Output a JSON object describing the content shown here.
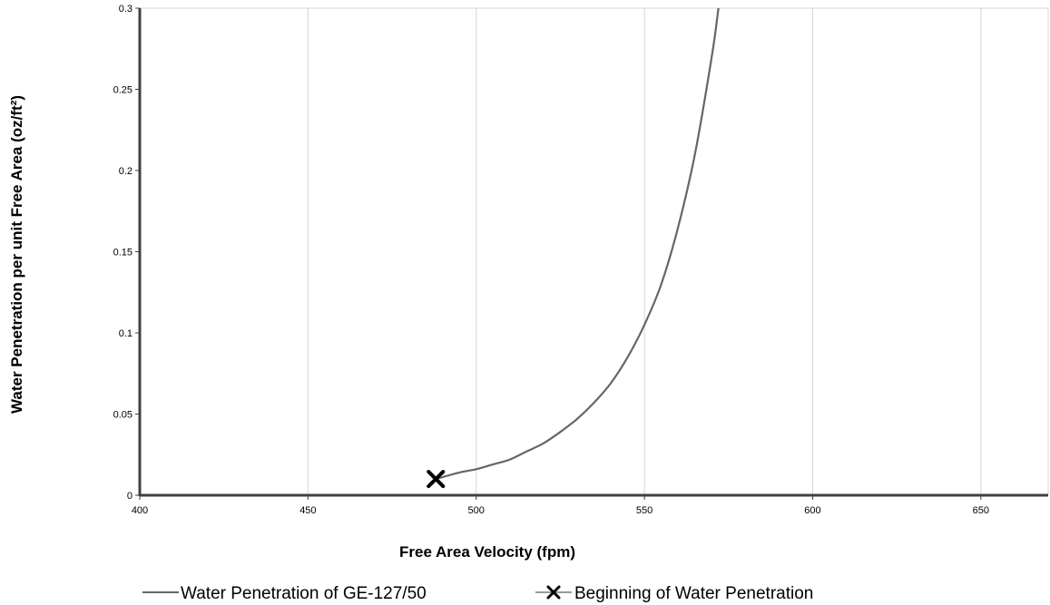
{
  "chart_data": {
    "type": "line",
    "xlabel": "Free Area Velocity (fpm)",
    "ylabel": "Water Penetration per unit Free Area (oz/ft²)",
    "xlim": [
      400,
      670
    ],
    "ylim": [
      0,
      0.3
    ],
    "x_ticks": [
      400,
      450,
      500,
      550,
      600,
      650
    ],
    "x_tick_labels": [
      "400",
      "450",
      "500",
      "550",
      "600",
      "650"
    ],
    "y_ticks": [
      0,
      0.05,
      0.1,
      0.15,
      0.2,
      0.25,
      0.3
    ],
    "y_tick_labels": [
      "0",
      "0.05",
      "0.1",
      "0.15",
      "0.2",
      "0.25",
      "0.3"
    ],
    "grid": "vertical",
    "legend_position": "bottom",
    "series": [
      {
        "name": "Water Penetration of GE-127/50",
        "color": "#666666",
        "style": "line",
        "x": [
          488,
          495,
          500,
          505,
          510,
          515,
          520,
          525,
          530,
          535,
          540,
          545,
          550,
          555,
          560,
          565,
          570,
          572
        ],
        "y": [
          0.01,
          0.014,
          0.016,
          0.019,
          0.022,
          0.027,
          0.032,
          0.039,
          0.047,
          0.057,
          0.069,
          0.085,
          0.105,
          0.13,
          0.165,
          0.21,
          0.27,
          0.3
        ]
      },
      {
        "name": "Beginning of Water Penetration",
        "color": "#000000",
        "style": "marker-x",
        "x": [
          488
        ],
        "y": [
          0.01
        ]
      }
    ]
  }
}
